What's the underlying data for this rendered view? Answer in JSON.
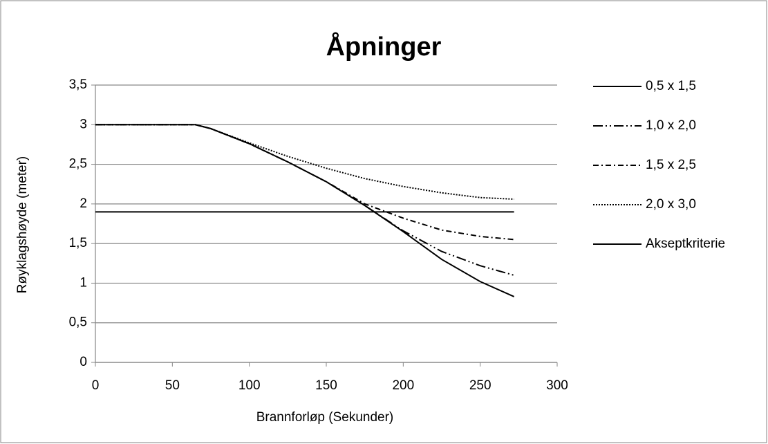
{
  "chart_data": {
    "type": "line",
    "title": "Åpninger",
    "x_label": "Brannforløp (Sekunder)",
    "y_label": "Røyklagshøyde (meter)",
    "x": [
      0,
      25,
      50,
      65,
      75,
      100,
      125,
      150,
      175,
      200,
      225,
      250,
      272
    ],
    "series": [
      {
        "name": "0,5 x 1,5",
        "color": "#000000",
        "dash": "solid",
        "values": [
          3,
          3,
          3,
          3,
          2.95,
          2.76,
          2.53,
          2.28,
          1.98,
          1.65,
          1.3,
          1.02,
          0.83
        ]
      },
      {
        "name": "1,0 x 2,0",
        "color": "#000000",
        "dash": "dash-dot-dot",
        "values": [
          3,
          3,
          3,
          3,
          2.95,
          2.76,
          2.53,
          2.28,
          1.98,
          1.66,
          1.4,
          1.22,
          1.1
        ]
      },
      {
        "name": "1,5 x 2,5",
        "color": "#000000",
        "dash": "dash-dot",
        "values": [
          3,
          3,
          3,
          3,
          2.95,
          2.76,
          2.53,
          2.28,
          2.0,
          1.82,
          1.67,
          1.59,
          1.55
        ]
      },
      {
        "name": "2,0 x 3,0",
        "color": "#000000",
        "dash": "dot",
        "values": [
          3,
          3,
          3,
          3,
          2.95,
          2.77,
          2.6,
          2.45,
          2.32,
          2.22,
          2.14,
          2.08,
          2.06
        ]
      },
      {
        "name": "Akseptkriterie",
        "color": "#000000",
        "dash": "solid",
        "values": [
          1.9,
          1.9,
          1.9,
          1.9,
          1.9,
          1.9,
          1.9,
          1.9,
          1.9,
          1.9,
          1.9,
          1.9,
          1.9
        ]
      }
    ],
    "xlim": [
      0,
      300
    ],
    "xticks": [
      0,
      50,
      100,
      150,
      200,
      250,
      300
    ],
    "ylim": [
      0,
      3.5
    ],
    "yticks": [
      0,
      {
        "value": 0.5,
        "label": "0,5"
      },
      1,
      {
        "value": 1.5,
        "label": "1,5"
      },
      2,
      {
        "value": 2.5,
        "label": "2,5"
      },
      3,
      {
        "value": 3.5,
        "label": "3,5"
      }
    ],
    "grid": true,
    "legend": "right"
  }
}
